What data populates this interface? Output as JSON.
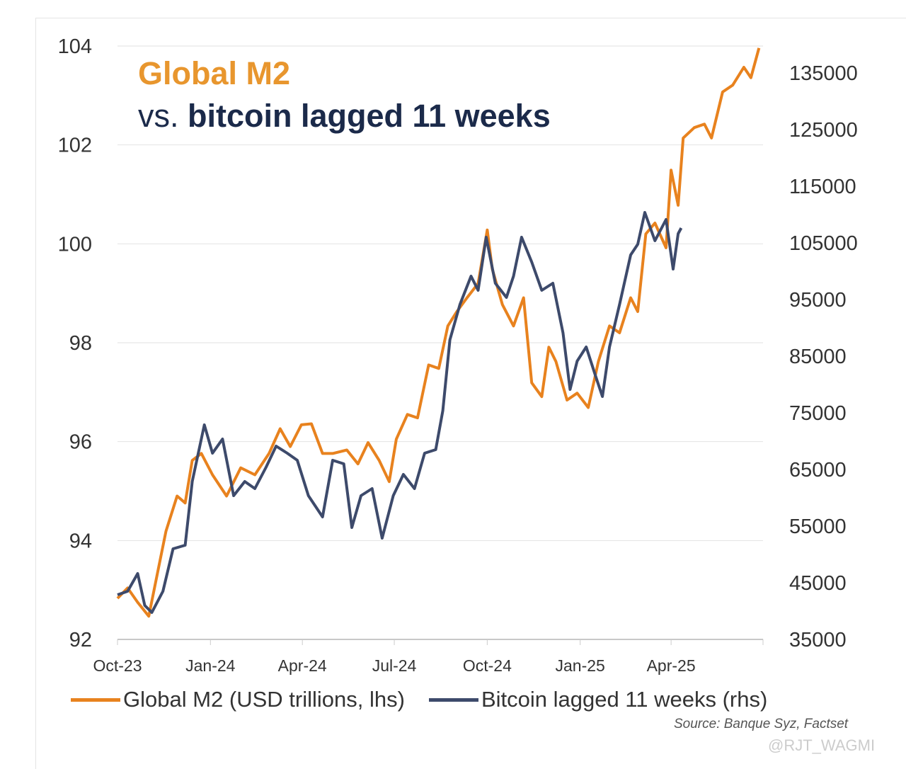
{
  "chart_data": {
    "type": "line",
    "title": "Global M2",
    "subtitle_prefix": "vs.",
    "subtitle": "bitcoin lagged 11 weeks",
    "source": "Source: Banque Syz, Factset",
    "watermark": "@RJT_WAGMI",
    "xlim": [
      "2023-10-01",
      "2025-07-01"
    ],
    "x_ticks": [
      {
        "date": "2023-10-01",
        "label": "Oct-23"
      },
      {
        "date": "2024-01-01",
        "label": "Jan-24"
      },
      {
        "date": "2024-04-01",
        "label": "Apr-24"
      },
      {
        "date": "2024-07-01",
        "label": "Jul-24"
      },
      {
        "date": "2024-10-01",
        "label": "Oct-24"
      },
      {
        "date": "2025-01-01",
        "label": "Jan-25"
      },
      {
        "date": "2025-04-01",
        "label": "Apr-25"
      }
    ],
    "y_left": {
      "lim": [
        92,
        104
      ],
      "ticks": [
        "92",
        "94",
        "96",
        "98",
        "100",
        "102",
        "104"
      ]
    },
    "y_right": {
      "lim": [
        35000,
        139750
      ],
      "ticks": [
        "35000",
        "45000",
        "55000",
        "65000",
        "75000",
        "85000",
        "95000",
        "105000",
        "115000",
        "125000",
        "135000"
      ]
    },
    "grid": "horizontal",
    "legend": "bottom",
    "series": [
      {
        "name": "Global M2 (USD trillions, lhs)",
        "axis": "left",
        "color": "#E8821E",
        "x": [
          "2023-10-01",
          "2023-10-11",
          "2023-10-21",
          "2023-11-01",
          "2023-11-08",
          "2023-11-18",
          "2023-11-29",
          "2023-12-07",
          "2023-12-14",
          "2023-12-23",
          "2024-01-03",
          "2024-01-17",
          "2024-01-31",
          "2024-02-14",
          "2024-02-28",
          "2024-03-10",
          "2024-03-20",
          "2024-03-31",
          "2024-04-10",
          "2024-04-21",
          "2024-05-01",
          "2024-05-15",
          "2024-05-26",
          "2024-06-05",
          "2024-06-16",
          "2024-06-26",
          "2024-07-03",
          "2024-07-14",
          "2024-07-24",
          "2024-08-04",
          "2024-08-14",
          "2024-08-23",
          "2024-09-01",
          "2024-09-11",
          "2024-09-22",
          "2024-10-01",
          "2024-10-06",
          "2024-10-16",
          "2024-10-27",
          "2024-11-06",
          "2024-11-14",
          "2024-11-24",
          "2024-12-01",
          "2024-12-08",
          "2024-12-19",
          "2024-12-29",
          "2025-01-09",
          "2025-01-19",
          "2025-01-30",
          "2025-02-09",
          "2025-02-20",
          "2025-02-27",
          "2025-03-07",
          "2025-03-16",
          "2025-03-27",
          "2025-04-01",
          "2025-04-08",
          "2025-04-13",
          "2025-04-24",
          "2025-05-04",
          "2025-05-11",
          "2025-05-22",
          "2025-06-01",
          "2025-06-12",
          "2025-06-19",
          "2025-06-27"
        ],
        "y": [
          92.83,
          93.04,
          92.75,
          92.47,
          93.18,
          94.19,
          94.9,
          94.76,
          95.62,
          95.76,
          95.33,
          94.9,
          95.47,
          95.33,
          95.76,
          96.26,
          95.9,
          96.34,
          96.36,
          95.76,
          95.76,
          95.83,
          95.55,
          95.98,
          95.62,
          95.19,
          96.05,
          96.55,
          96.48,
          97.55,
          97.48,
          98.34,
          98.63,
          98.91,
          99.2,
          100.28,
          99.49,
          98.77,
          98.34,
          98.91,
          97.19,
          96.91,
          97.91,
          97.62,
          96.84,
          96.98,
          96.69,
          97.62,
          98.34,
          98.2,
          98.91,
          98.63,
          100.2,
          100.42,
          99.92,
          101.49,
          100.78,
          102.14,
          102.35,
          102.42,
          102.14,
          103.07,
          103.21,
          103.57,
          103.36,
          103.96
        ]
      },
      {
        "name": "Bitcoin lagged 11 weeks (rhs)",
        "axis": "right",
        "color": "#3D4A6B",
        "x": [
          "2023-10-01",
          "2023-10-11",
          "2023-10-21",
          "2023-10-28",
          "2023-11-04",
          "2023-11-15",
          "2023-11-25",
          "2023-12-07",
          "2023-12-14",
          "2023-12-26",
          "2024-01-03",
          "2024-01-13",
          "2024-01-24",
          "2024-02-04",
          "2024-02-14",
          "2024-02-25",
          "2024-03-06",
          "2024-03-17",
          "2024-03-27",
          "2024-04-07",
          "2024-04-21",
          "2024-05-01",
          "2024-05-12",
          "2024-05-20",
          "2024-05-29",
          "2024-06-09",
          "2024-06-19",
          "2024-06-30",
          "2024-07-10",
          "2024-07-21",
          "2024-07-31",
          "2024-08-11",
          "2024-08-18",
          "2024-08-25",
          "2024-09-04",
          "2024-09-15",
          "2024-09-22",
          "2024-09-30",
          "2024-10-09",
          "2024-10-20",
          "2024-10-27",
          "2024-11-04",
          "2024-11-14",
          "2024-11-24",
          "2024-12-05",
          "2024-12-15",
          "2024-12-22",
          "2024-12-29",
          "2025-01-07",
          "2025-01-16",
          "2025-01-23",
          "2025-01-30",
          "2025-02-09",
          "2025-02-20",
          "2025-02-27",
          "2025-03-06",
          "2025-03-16",
          "2025-03-27",
          "2025-04-03",
          "2025-04-08",
          "2025-04-11"
        ],
        "y": [
          42875,
          43500,
          46625,
          41000,
          39750,
          43500,
          51000,
          51625,
          62875,
          72875,
          67875,
          70375,
          60375,
          62875,
          61625,
          65375,
          69125,
          67875,
          66625,
          60375,
          56625,
          66625,
          66000,
          54750,
          60375,
          61625,
          52875,
          60375,
          64125,
          61625,
          67875,
          68500,
          75375,
          87875,
          94125,
          99125,
          96625,
          106000,
          97875,
          95375,
          99125,
          106000,
          101625,
          96625,
          97875,
          89125,
          79125,
          84125,
          86625,
          81625,
          77875,
          86625,
          94125,
          102875,
          104750,
          110375,
          105375,
          109125,
          100375,
          106625,
          107625
        ]
      }
    ]
  }
}
